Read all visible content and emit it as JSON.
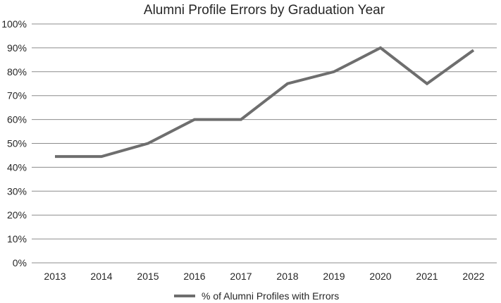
{
  "chart_data": {
    "type": "line",
    "title": "Alumni Profile Errors by Graduation Year",
    "xlabel": "",
    "ylabel": "",
    "categories": [
      "2013",
      "2014",
      "2015",
      "2016",
      "2017",
      "2018",
      "2019",
      "2020",
      "2021",
      "2022"
    ],
    "series": [
      {
        "name": "% of Alumni Profiles with Errors",
        "values": [
          44.5,
          44.5,
          50,
          60,
          60,
          75,
          80,
          90,
          75,
          89
        ],
        "color": "#6e6e6e"
      }
    ],
    "ylim": [
      0,
      100
    ],
    "yticks": [
      0,
      10,
      20,
      30,
      40,
      50,
      60,
      70,
      80,
      90,
      100
    ],
    "ytick_labels": [
      "0%",
      "10%",
      "20%",
      "30%",
      "40%",
      "50%",
      "60%",
      "70%",
      "80%",
      "90%",
      "100%"
    ],
    "grid": true,
    "legend_position": "bottom",
    "gridline_color": "#8c8c8c"
  }
}
